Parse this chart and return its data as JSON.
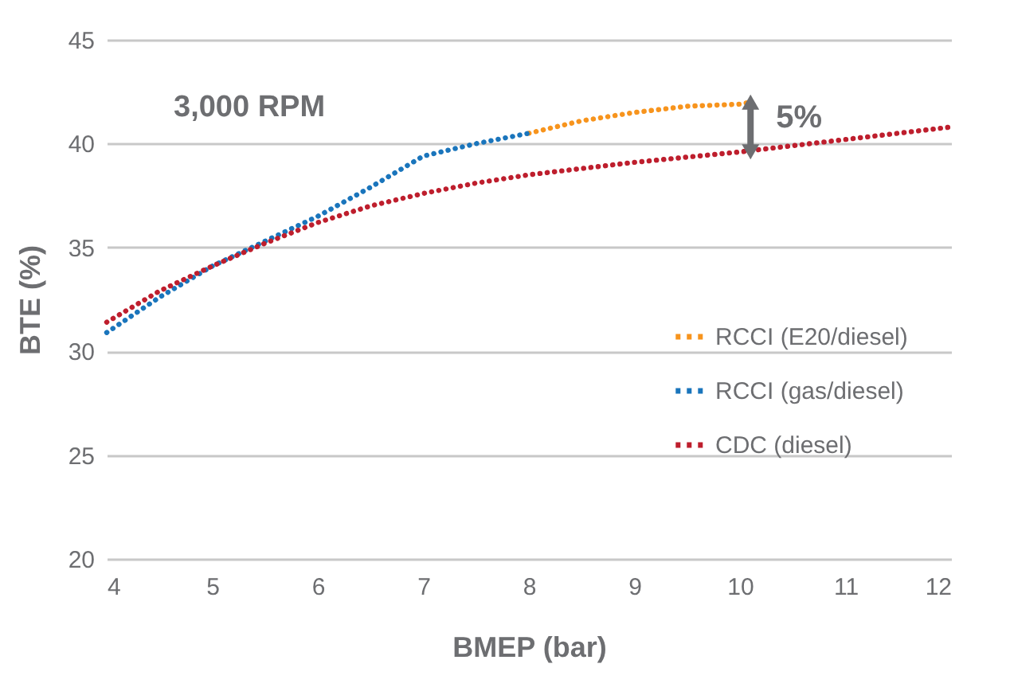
{
  "chart_data": {
    "type": "line",
    "xlabel": "BMEP (bar)",
    "ylabel": "BTE (%)",
    "xlim": [
      4,
      12
    ],
    "xticks": [
      4,
      5,
      6,
      7,
      8,
      9,
      10,
      11,
      12
    ],
    "ylim": [
      20,
      45
    ],
    "yticks": [
      20,
      25,
      30,
      35,
      40,
      45
    ],
    "grid": "y",
    "legend": "right",
    "line_style": "dotted",
    "marker": "none",
    "annotations": [
      "3,000 RPM",
      "5%"
    ],
    "series": [
      {
        "name": "RCCI (E20/diesel)",
        "color": "#f7941d",
        "x": [
          8,
          8.5,
          9,
          9.5,
          10,
          10.1
        ],
        "values": [
          40.5,
          41.1,
          41.5,
          41.8,
          41.9,
          42.0
        ]
      },
      {
        "name": "RCCI (gas/diesel)",
        "color": "#1a75bc",
        "x": [
          4,
          4.5,
          5,
          5.5,
          6,
          6.5,
          7,
          7.5,
          8
        ],
        "values": [
          30.9,
          32.6,
          34.1,
          35.3,
          36.5,
          37.9,
          39.4,
          40.0,
          40.5
        ]
      },
      {
        "name": "CDC (diesel)",
        "color": "#be1e2d",
        "x": [
          4,
          4.5,
          5,
          5.5,
          6,
          6.5,
          7,
          7.5,
          8,
          9,
          10,
          11,
          12
        ],
        "values": [
          31.4,
          32.9,
          34.1,
          35.2,
          36.2,
          37.0,
          37.6,
          38.1,
          38.5,
          39.1,
          39.6,
          40.2,
          40.8
        ]
      }
    ]
  }
}
